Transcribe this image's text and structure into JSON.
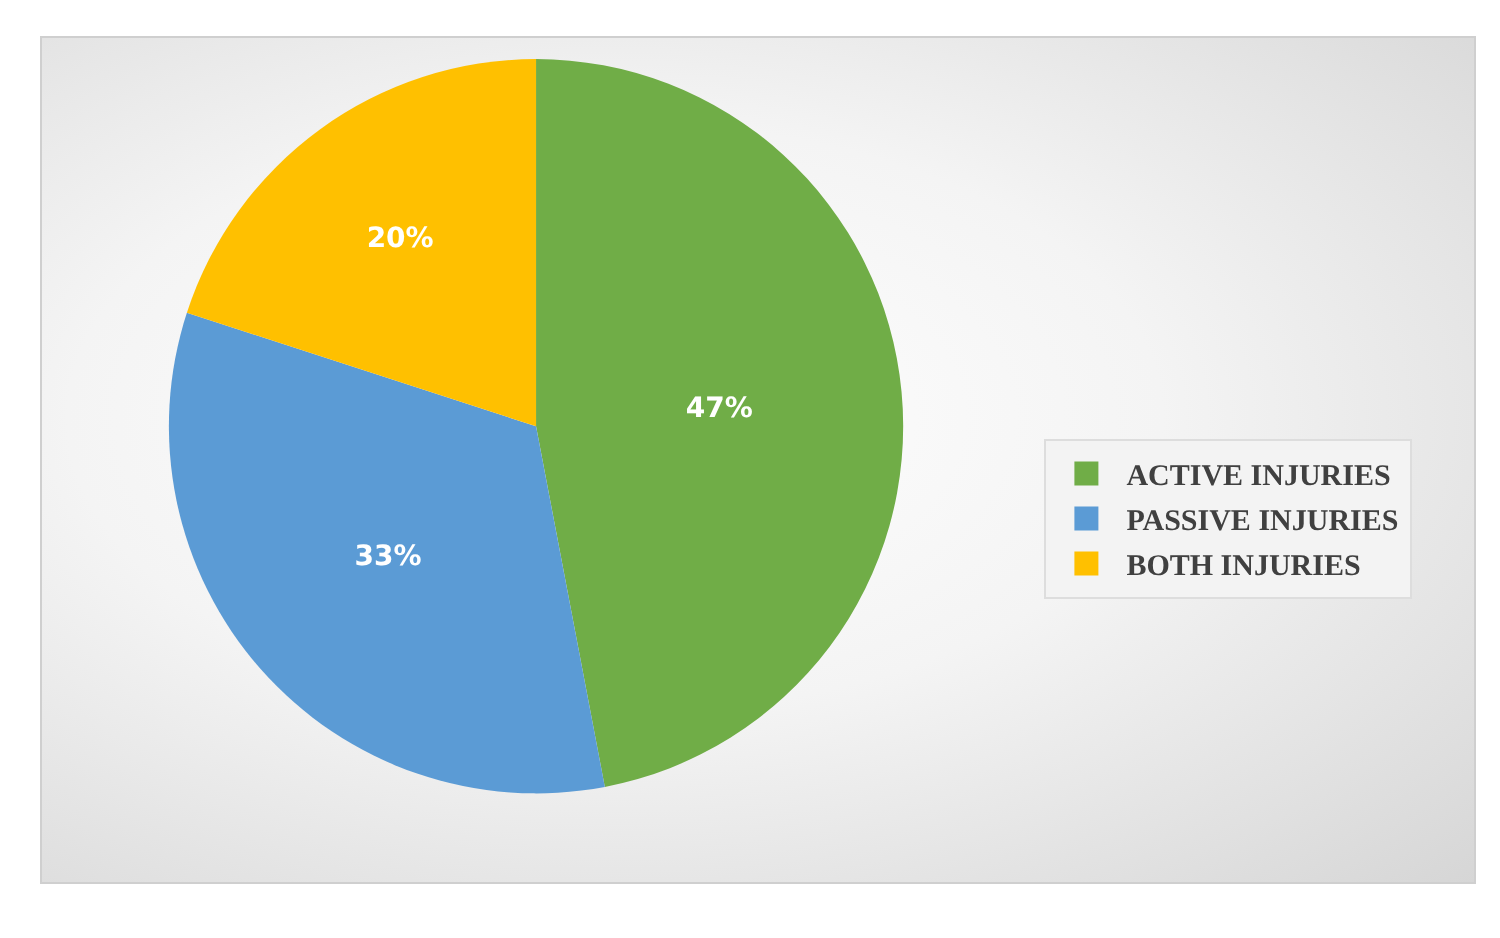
{
  "chart_data": {
    "type": "pie",
    "categories": [
      "ACTIVE INJURIES",
      "PASSIVE INJURIES",
      "BOTH INJURIES"
    ],
    "values": [
      47,
      33,
      20
    ],
    "colors": [
      "#70ad47",
      "#5b9bd5",
      "#ffc000"
    ],
    "value_labels": [
      "47%",
      "33%",
      "20%"
    ],
    "legend": "right"
  }
}
